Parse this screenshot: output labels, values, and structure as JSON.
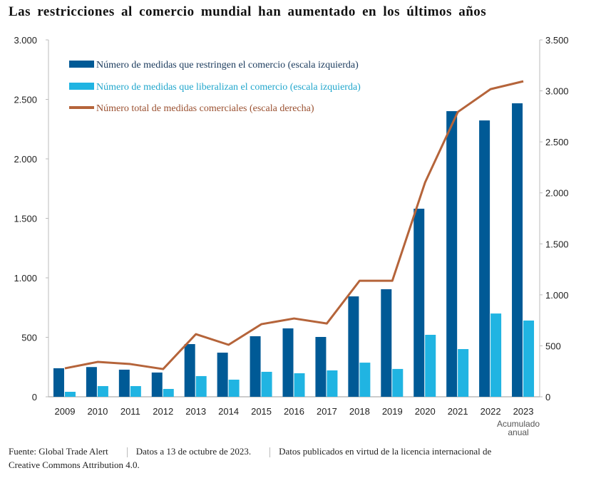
{
  "chart_data": {
    "type": "bar",
    "title": "Las restricciones al comercio mundial han aumentado en los últimos años",
    "categories": [
      "2009",
      "2010",
      "2011",
      "2012",
      "2013",
      "2014",
      "2015",
      "2016",
      "2017",
      "2018",
      "2019",
      "2020",
      "2021",
      "2022",
      "2023"
    ],
    "category_note": "Acumulado anual",
    "left_axis": {
      "ylim": [
        0,
        3000
      ],
      "ticks": [
        0,
        500,
        1000,
        1500,
        2000,
        2500,
        3000
      ],
      "tick_labels": [
        "0",
        "500",
        "1.000",
        "1.500",
        "2.000",
        "2.500",
        "3.000"
      ]
    },
    "right_axis": {
      "ylim": [
        0,
        3500
      ],
      "ticks": [
        0,
        500,
        1000,
        1500,
        2000,
        2500,
        3000,
        3500
      ],
      "tick_labels": [
        "0",
        "500",
        "1.000",
        "1.500",
        "2.000",
        "2.500",
        "3.000",
        "3.500"
      ]
    },
    "series": [
      {
        "name": "Número de medidas que restringen el comercio (escala izquierda)",
        "type": "bar",
        "axis": "left",
        "color": "#005a96",
        "values": [
          240,
          250,
          228,
          204,
          443,
          371,
          509,
          575,
          503,
          844,
          904,
          1581,
          2401,
          2323,
          2467
        ]
      },
      {
        "name": "Número de medidas que liberalizan el comercio (escala izquierda)",
        "type": "bar",
        "axis": "left",
        "color": "#20b4e2",
        "values": [
          42,
          90,
          90,
          66,
          174,
          144,
          210,
          198,
          222,
          287,
          234,
          521,
          401,
          700,
          641
        ]
      },
      {
        "name": "Número total de medidas comerciales (escala derecha)",
        "type": "line",
        "axis": "right",
        "color": "#b5643a",
        "values": [
          279,
          342,
          321,
          272,
          614,
          510,
          712,
          768,
          719,
          1138,
          1138,
          2102,
          2793,
          3017,
          3094
        ]
      }
    ],
    "legend_position": "top-left",
    "grid": false
  },
  "footer": {
    "source": "Fuente: Global Trade Alert",
    "date": "Datos a 13 de octubre de 2023.",
    "license": "Datos publicados en virtud de la licencia internacional de Creative Commons Attribution 4.0."
  }
}
